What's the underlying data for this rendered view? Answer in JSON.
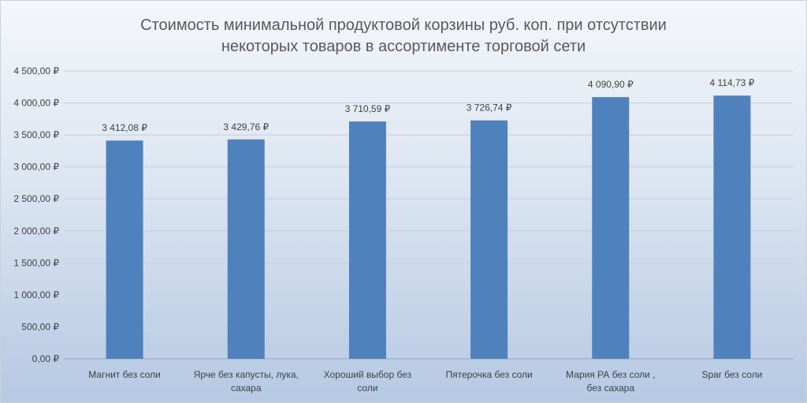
{
  "chart_data": {
    "type": "bar",
    "title": [
      "Стоимость минимальной продуктовой корзины руб. коп. при отсутствии",
      "некоторых товаров в ассортименте торговой сети"
    ],
    "categories": [
      [
        "Магнит без соли"
      ],
      [
        "Ярче  без капусты, лука,",
        "сахара"
      ],
      [
        "Хороший выбор без",
        "соли"
      ],
      [
        "Пятерочка  без соли"
      ],
      [
        "Мария РА  без соли ,",
        "без сахара"
      ],
      [
        "Spar без соли"
      ]
    ],
    "values": [
      3412.08,
      3429.76,
      3710.59,
      3726.74,
      4090.9,
      4114.73
    ],
    "value_labels": [
      "3 412,08 ₽",
      "3 429,76 ₽",
      "3 710,59 ₽",
      "3 726,74 ₽",
      "4 090,90 ₽",
      "4 114,73 ₽"
    ],
    "ylim": [
      0,
      4500
    ],
    "yticks": [
      0,
      500,
      1000,
      1500,
      2000,
      2500,
      3000,
      3500,
      4000,
      4500
    ],
    "ytick_labels": [
      "0,00 ₽",
      "500,00 ₽",
      "1 000,00 ₽",
      "1 500,00 ₽",
      "2 000,00 ₽",
      "2 500,00 ₽",
      "3 000,00 ₽",
      "3 500,00 ₽",
      "4 000,00 ₽",
      "4 500,00 ₽"
    ],
    "grid": true,
    "bar_color": "#4f81bd"
  }
}
